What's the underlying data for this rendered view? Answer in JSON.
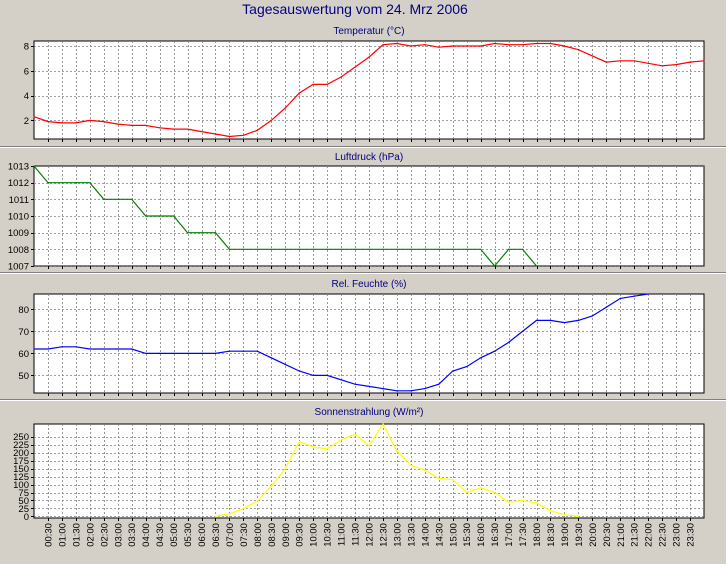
{
  "title": "Tagesauswertung vom 24. Mrz 2006",
  "colors": {
    "background": "#d4d0c8",
    "plot_area": "#ffffff",
    "grid": "#808080",
    "title": "#000080"
  },
  "x_tick_labels": [
    "00:30",
    "01:00",
    "01:30",
    "02:00",
    "02:30",
    "03:00",
    "03:30",
    "04:00",
    "04:30",
    "05:00",
    "05:30",
    "06:00",
    "06:30",
    "07:00",
    "07:30",
    "08:00",
    "08:30",
    "09:00",
    "09:30",
    "10:00",
    "10:30",
    "11:00",
    "11:30",
    "12:00",
    "12:30",
    "13:00",
    "13:30",
    "14:00",
    "14:30",
    "15:00",
    "15:30",
    "16:00",
    "16:30",
    "17:00",
    "17:30",
    "18:00",
    "18:30",
    "19:00",
    "19:30",
    "20:00",
    "20:30",
    "21:00",
    "21:30",
    "22:00",
    "22:30",
    "23:00",
    "23:30"
  ],
  "chart_data": [
    {
      "type": "line",
      "title": "Temperatur (°C)",
      "color": "#ff0000",
      "ylim": [
        0.5,
        8.4
      ],
      "yticks": [
        2,
        4,
        6,
        8
      ],
      "grid": true,
      "x": [
        "00:00",
        "00:30",
        "01:00",
        "01:30",
        "02:00",
        "02:30",
        "03:00",
        "03:30",
        "04:00",
        "04:30",
        "05:00",
        "05:30",
        "06:00",
        "06:30",
        "07:00",
        "07:30",
        "08:00",
        "08:30",
        "09:00",
        "09:30",
        "10:00",
        "10:30",
        "11:00",
        "11:30",
        "12:00",
        "12:30",
        "13:00",
        "13:30",
        "14:00",
        "14:30",
        "15:00",
        "15:30",
        "16:00",
        "16:30",
        "17:00",
        "17:30",
        "18:00",
        "18:30",
        "19:00",
        "19:30",
        "20:00",
        "20:30",
        "21:00",
        "21:30",
        "22:00",
        "22:30",
        "23:00",
        "23:30",
        "24:00"
      ],
      "values": [
        2.3,
        1.9,
        1.8,
        1.8,
        2.0,
        1.9,
        1.7,
        1.6,
        1.6,
        1.4,
        1.3,
        1.3,
        1.1,
        0.9,
        0.7,
        0.8,
        1.2,
        2.0,
        3.0,
        4.2,
        4.9,
        4.9,
        5.5,
        6.3,
        7.1,
        8.1,
        8.2,
        8.0,
        8.1,
        7.9,
        8.0,
        8.0,
        8.0,
        8.2,
        8.1,
        8.1,
        8.2,
        8.2,
        8.0,
        7.7,
        7.2,
        6.7,
        6.8,
        6.8,
        6.6,
        6.4,
        6.5,
        6.7,
        6.8
      ]
    },
    {
      "type": "line",
      "title": "Luftdruck (hPa)",
      "color": "#008000",
      "ylim": [
        1007,
        1013
      ],
      "yticks": [
        1007,
        1008,
        1009,
        1010,
        1011,
        1012,
        1013
      ],
      "grid": true,
      "x": [
        "00:00",
        "00:30",
        "01:00",
        "01:30",
        "02:00",
        "02:30",
        "03:00",
        "03:30",
        "04:00",
        "04:30",
        "05:00",
        "05:30",
        "06:00",
        "06:30",
        "07:00",
        "07:30",
        "08:00",
        "08:30",
        "09:00",
        "09:30",
        "10:00",
        "10:30",
        "11:00",
        "11:30",
        "12:00",
        "12:30",
        "13:00",
        "13:30",
        "14:00",
        "14:30",
        "15:00",
        "15:30",
        "16:00",
        "16:30",
        "17:00",
        "17:30",
        "18:00"
      ],
      "values": [
        1013,
        1012,
        1012,
        1012,
        1012,
        1011,
        1011,
        1011,
        1010,
        1010,
        1010,
        1009,
        1009,
        1009,
        1008,
        1008,
        1008,
        1008,
        1008,
        1008,
        1008,
        1008,
        1008,
        1008,
        1008,
        1008,
        1008,
        1008,
        1008,
        1008,
        1008,
        1008,
        1008,
        1007,
        1008,
        1008,
        1007
      ]
    },
    {
      "type": "line",
      "title": "Rel. Feuchte (%)",
      "color": "#0000ff",
      "ylim": [
        42,
        87
      ],
      "yticks": [
        50,
        60,
        70,
        80
      ],
      "grid": true,
      "x": [
        "00:00",
        "00:30",
        "01:00",
        "01:30",
        "02:00",
        "02:30",
        "03:00",
        "03:30",
        "04:00",
        "04:30",
        "05:00",
        "05:30",
        "06:00",
        "06:30",
        "07:00",
        "07:30",
        "08:00",
        "08:30",
        "09:00",
        "09:30",
        "10:00",
        "10:30",
        "11:00",
        "11:30",
        "12:00",
        "12:30",
        "13:00",
        "13:30",
        "14:00",
        "14:30",
        "15:00",
        "15:30",
        "16:00",
        "16:30",
        "17:00",
        "17:30",
        "18:00",
        "18:30",
        "19:00",
        "19:30",
        "20:00",
        "20:30",
        "21:00",
        "21:30",
        "22:00"
      ],
      "values": [
        62,
        62,
        63,
        63,
        62,
        62,
        62,
        62,
        60,
        60,
        60,
        60,
        60,
        60,
        61,
        61,
        61,
        58,
        55,
        52,
        50,
        50,
        48,
        46,
        45,
        44,
        43,
        43,
        44,
        46,
        52,
        54,
        58,
        61,
        65,
        70,
        75,
        75,
        74,
        75,
        77,
        81,
        85,
        86,
        87
      ]
    },
    {
      "type": "line",
      "title": "Sonnenstrahlung (W/m²)",
      "color": "#ffff00",
      "ylim": [
        -5,
        290
      ],
      "yticks": [
        0,
        25,
        50,
        75,
        100,
        125,
        150,
        175,
        200,
        225,
        250
      ],
      "grid": true,
      "x": [
        "06:30",
        "07:00",
        "07:30",
        "08:00",
        "08:30",
        "09:00",
        "09:30",
        "10:00",
        "10:30",
        "11:00",
        "11:30",
        "12:00",
        "12:30",
        "13:00",
        "13:30",
        "14:00",
        "14:30",
        "15:00",
        "15:30",
        "16:00",
        "16:30",
        "17:00",
        "17:30",
        "18:00",
        "18:30",
        "19:00",
        "19:30"
      ],
      "values": [
        0,
        8,
        25,
        48,
        95,
        150,
        235,
        218,
        212,
        240,
        258,
        222,
        290,
        205,
        160,
        145,
        120,
        115,
        75,
        90,
        75,
        45,
        50,
        42,
        18,
        5,
        0
      ]
    }
  ]
}
